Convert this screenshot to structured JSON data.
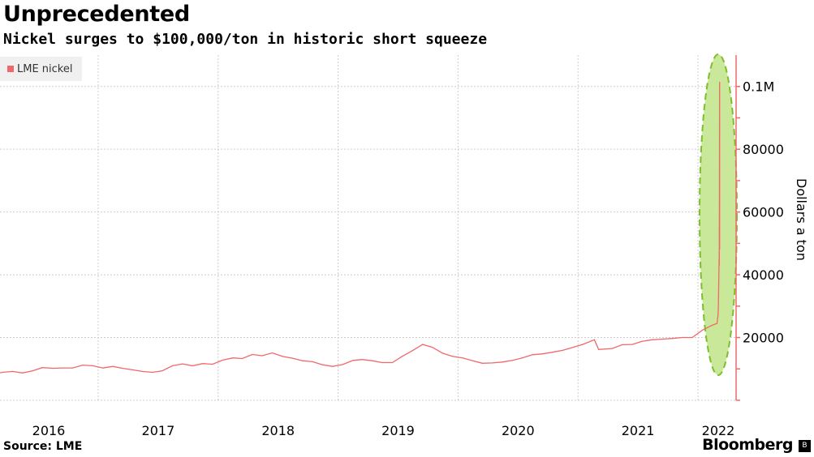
{
  "header": {
    "title": "Unprecedented",
    "subtitle": "Nickel surges to $100,000/ton in historic short squeeze"
  },
  "footer": {
    "source": "Source: LME",
    "brand": "Bloomberg",
    "brand_icon": "bloomberg-b-icon"
  },
  "colors": {
    "series": "#f0686c",
    "highlight": "#c9e89a",
    "highlight_border": "#7cbf2a"
  },
  "chart_data": {
    "type": "line",
    "title": "Unprecedented",
    "subtitle": "Nickel surges to $100,000/ton in historic short squeeze",
    "ylabel": "Dollars a ton",
    "y_axis_side": "right",
    "ylim": [
      0,
      110000
    ],
    "xlim": [
      "2015-12-10",
      "2022-03-31"
    ],
    "grid": true,
    "legend_position": "top-left",
    "y_ticks": [
      {
        "v": 20000,
        "label": "20000"
      },
      {
        "v": 40000,
        "label": "40000"
      },
      {
        "v": 60000,
        "label": "60000"
      },
      {
        "v": 80000,
        "label": "80000"
      },
      {
        "v": 100000,
        "label": "0.1M"
      }
    ],
    "x_ticks": [
      "2016",
      "2017",
      "2018",
      "2019",
      "2020",
      "2021",
      "2022"
    ],
    "annotation": "highlight ellipse around March 2022 spike",
    "series": [
      {
        "name": "LME nickel",
        "points": [
          [
            "2015-12-10",
            8800
          ],
          [
            "2016-01-15",
            8500
          ],
          [
            "2016-02-15",
            8300
          ],
          [
            "2016-03-15",
            8900
          ],
          [
            "2016-04-15",
            9200
          ],
          [
            "2016-05-15",
            8700
          ],
          [
            "2016-06-15",
            9400
          ],
          [
            "2016-07-15",
            10400
          ],
          [
            "2016-08-15",
            10200
          ],
          [
            "2016-09-15",
            10300
          ],
          [
            "2016-10-15",
            10300
          ],
          [
            "2016-11-15",
            11200
          ],
          [
            "2016-12-15",
            11000
          ],
          [
            "2017-01-15",
            10300
          ],
          [
            "2017-02-15",
            10800
          ],
          [
            "2017-03-15",
            10200
          ],
          [
            "2017-04-15",
            9700
          ],
          [
            "2017-05-15",
            9200
          ],
          [
            "2017-06-15",
            8900
          ],
          [
            "2017-07-15",
            9400
          ],
          [
            "2017-08-15",
            11000
          ],
          [
            "2017-09-15",
            11600
          ],
          [
            "2017-10-15",
            11000
          ],
          [
            "2017-11-15",
            11700
          ],
          [
            "2017-12-15",
            11500
          ],
          [
            "2018-01-15",
            12800
          ],
          [
            "2018-02-15",
            13500
          ],
          [
            "2018-03-15",
            13300
          ],
          [
            "2018-04-15",
            14600
          ],
          [
            "2018-05-15",
            14200
          ],
          [
            "2018-06-15",
            15100
          ],
          [
            "2018-07-15",
            14000
          ],
          [
            "2018-08-15",
            13400
          ],
          [
            "2018-09-15",
            12600
          ],
          [
            "2018-10-15",
            12300
          ],
          [
            "2018-11-15",
            11300
          ],
          [
            "2018-12-15",
            10800
          ],
          [
            "2019-01-15",
            11400
          ],
          [
            "2019-02-15",
            12700
          ],
          [
            "2019-03-15",
            13000
          ],
          [
            "2019-04-15",
            12600
          ],
          [
            "2019-05-15",
            12000
          ],
          [
            "2019-06-15",
            12000
          ],
          [
            "2019-07-15",
            14000
          ],
          [
            "2019-08-15",
            15800
          ],
          [
            "2019-09-15",
            17800
          ],
          [
            "2019-10-15",
            16900
          ],
          [
            "2019-11-15",
            15000
          ],
          [
            "2019-12-15",
            14000
          ],
          [
            "2020-01-15",
            13500
          ],
          [
            "2020-02-15",
            12600
          ],
          [
            "2020-03-15",
            11800
          ],
          [
            "2020-04-15",
            11900
          ],
          [
            "2020-05-15",
            12200
          ],
          [
            "2020-06-15",
            12700
          ],
          [
            "2020-07-15",
            13500
          ],
          [
            "2020-08-15",
            14500
          ],
          [
            "2020-09-15",
            14800
          ],
          [
            "2020-10-15",
            15300
          ],
          [
            "2020-11-15",
            15900
          ],
          [
            "2020-12-15",
            16800
          ],
          [
            "2021-01-15",
            17800
          ],
          [
            "2021-02-20",
            19300
          ],
          [
            "2021-03-05",
            16200
          ],
          [
            "2021-04-15",
            16500
          ],
          [
            "2021-05-15",
            17700
          ],
          [
            "2021-06-15",
            17800
          ],
          [
            "2021-07-15",
            18800
          ],
          [
            "2021-08-15",
            19300
          ],
          [
            "2021-09-15",
            19500
          ],
          [
            "2021-10-15",
            19700
          ],
          [
            "2021-11-15",
            20000
          ],
          [
            "2021-12-15",
            20000
          ],
          [
            "2022-01-15",
            22400
          ],
          [
            "2022-02-15",
            24000
          ],
          [
            "2022-02-28",
            24500
          ],
          [
            "2022-03-03",
            27000
          ],
          [
            "2022-03-04",
            29000
          ],
          [
            "2022-03-07",
            48000
          ],
          [
            "2022-03-07",
            55000
          ],
          [
            "2022-03-07",
            42995
          ],
          [
            "2022-03-08",
            101365
          ],
          [
            "2022-03-08",
            48078
          ]
        ]
      }
    ]
  }
}
